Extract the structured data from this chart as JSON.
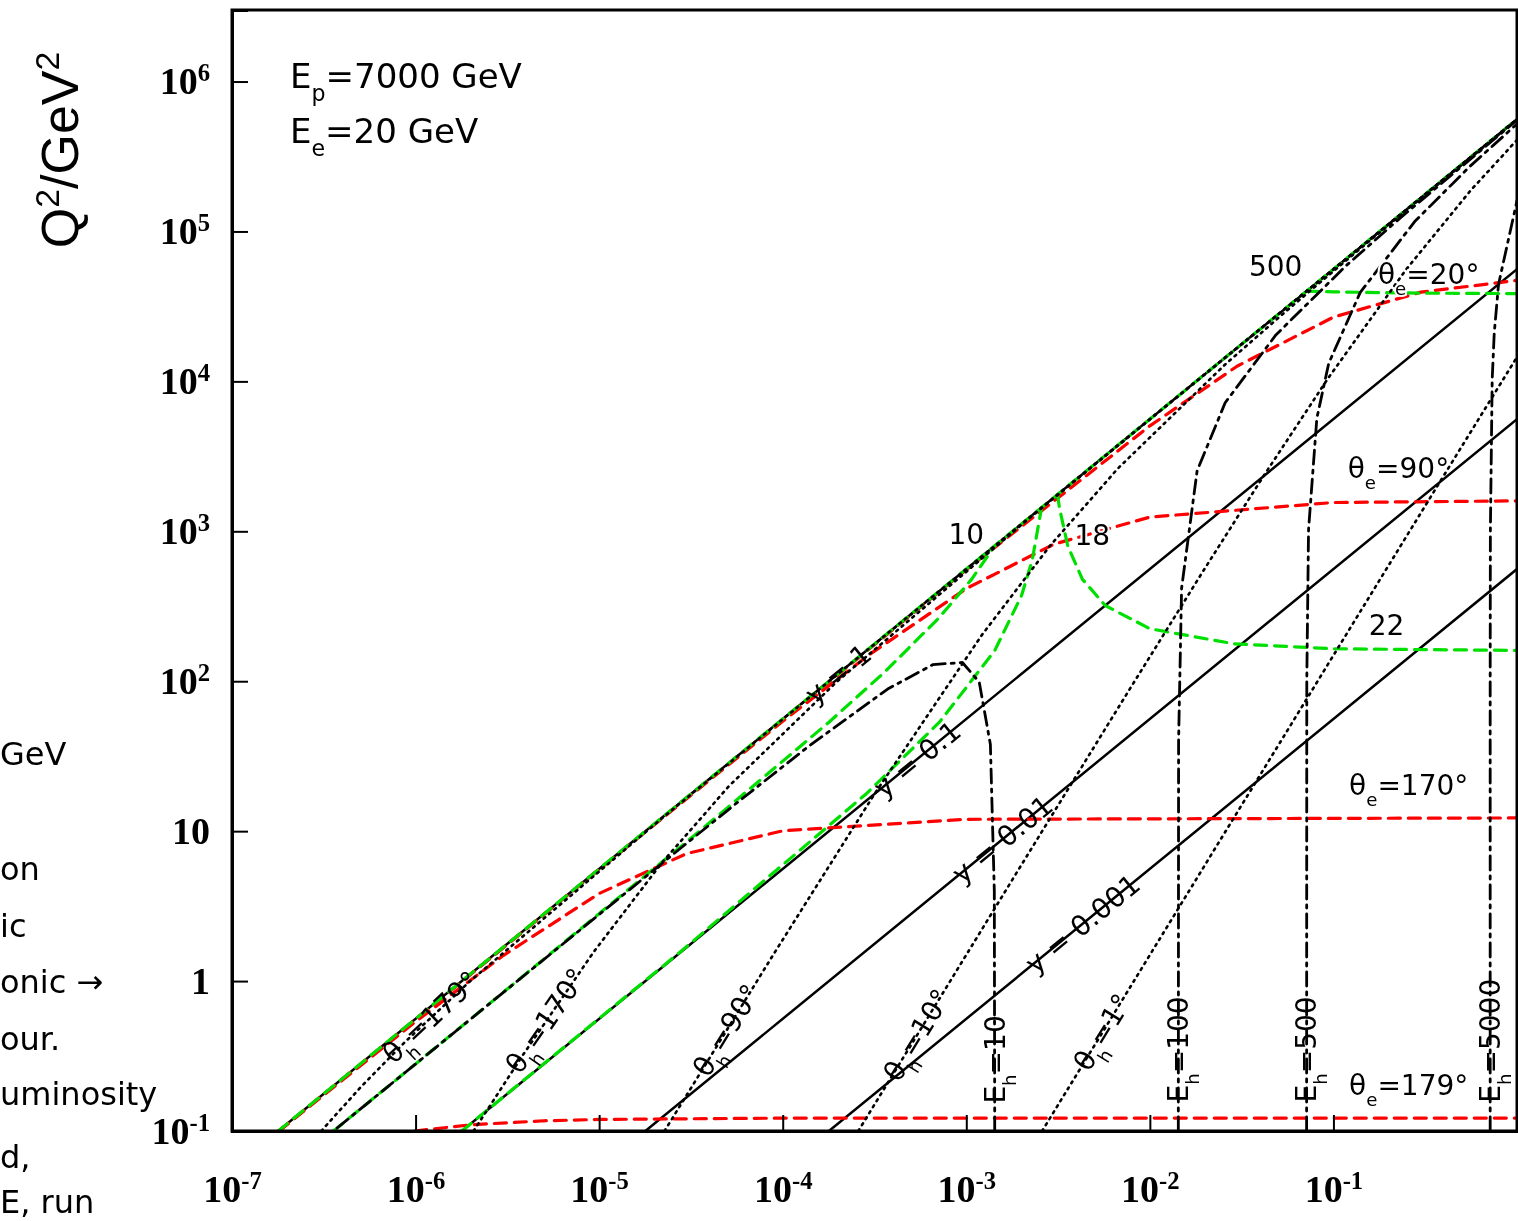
{
  "chart_data": {
    "type": "line",
    "ylabel": "Q$^{2}$/GeV$^{2}$",
    "log": "xy",
    "xlim": [
      1e-07,
      1
    ],
    "ylim": [
      0.1,
      3000000
    ],
    "xticks": [
      {
        "value": 1e-07,
        "label": "10$^{-7}$"
      },
      {
        "value": 1e-06,
        "label": "10$^{-6}$"
      },
      {
        "value": 1e-05,
        "label": "10$^{-5}$"
      },
      {
        "value": 0.0001,
        "label": "10$^{-4}$"
      },
      {
        "value": 0.001,
        "label": "10$^{-3}$"
      },
      {
        "value": 0.01,
        "label": "10$^{-2}$"
      },
      {
        "value": 0.1,
        "label": "10$^{-1}$"
      }
    ],
    "yticks": [
      {
        "value": 0.1,
        "label": "10$^{-1}$"
      },
      1,
      10,
      {
        "value": 100,
        "label": "10$^{2}$"
      },
      {
        "value": 1000,
        "label": "10$^{3}$"
      },
      {
        "value": 10000,
        "label": "10$^{4}$"
      },
      {
        "value": 100000,
        "label": "10$^{5}$"
      },
      {
        "value": 1000000,
        "label": "10$^{6}$"
      }
    ],
    "series": [
      {
        "color": "#000000",
        "line_style": "solid",
        "x": [
          1.786e-07,
          1
        ],
        "values": [
          0.1,
          560000
        ]
      },
      {
        "color": "#000000",
        "line_style": "solid",
        "x": [
          1.786e-06,
          1
        ],
        "values": [
          0.1,
          56000
        ]
      },
      {
        "color": "#000000",
        "line_style": "solid",
        "x": [
          1.786e-05,
          1
        ],
        "values": [
          0.1,
          5600
        ]
      },
      {
        "color": "#000000",
        "line_style": "solid",
        "x": [
          0.0001786,
          1
        ],
        "values": [
          0.1,
          560
        ]
      },
      {
        "color": "#ff0000",
        "line_style": "dashed",
        "x": [
          9.9e-07,
          2e-06,
          5e-06,
          1e-05,
          0.0001,
          1
        ],
        "values": [
          0.1,
          0.11,
          0.117,
          0.1194,
          0.1219,
          0.1219
        ]
      },
      {
        "color": "#ff0000",
        "line_style": "dashed",
        "x": [
          1.8e-07,
          1e-06,
          3e-06,
          1e-05,
          3e-05,
          0.0001,
          0.001,
          1
        ],
        "values": [
          0.1,
          0.536,
          1.48,
          3.84,
          7.09,
          10.05,
          12.0,
          12.25
        ]
      },
      {
        "color": "#ff0000",
        "line_style": "dashed",
        "x": [
          1.8e-07,
          1e-05,
          0.0001,
          0.0003,
          0.001,
          0.003,
          0.01,
          0.1,
          1
        ],
        "values": [
          0.1,
          5.58,
          54.1,
          152,
          415,
          820,
          1244,
          1556,
          1596
        ]
      },
      {
        "color": "#ff0000",
        "line_style": "dashed",
        "x": [
          1.8e-07,
          0.001,
          0.01,
          0.03,
          0.1,
          0.3,
          1
        ],
        "values": [
          0.1,
          554,
          5050,
          12670,
          26820,
          39390,
          47130
        ]
      },
      {
        "color": "#00e000",
        "line_style": "dashed",
        "x": [
          3.57e-07,
          3.57e-06,
          3.57e-05,
          0.0001786,
          0.000357,
          0.000714,
          0.001071,
          0.0014286
        ],
        "values": [
          0.1,
          1.0,
          10.13,
          53.3,
          114.3,
          266.7,
          480,
          800
        ]
      },
      {
        "color": "#00e000",
        "line_style": "dashed",
        "x": [
          1.786e-06,
          2.857e-05,
          0.0002857,
          0.000714,
          0.0014286,
          0.002,
          0.002286,
          0.002571
        ],
        "values": [
          0.1,
          1.616,
          17.78,
          53.3,
          160,
          373,
          640,
          1440
        ]
      },
      {
        "color": "#00e000",
        "line_style": "dashed",
        "x": [
          0.003143,
          0.003214,
          0.003571,
          0.004286,
          0.005714,
          0.01,
          0.02857,
          0.1,
          1
        ],
        "values": [
          1760,
          1440,
          800,
          480,
          320,
          224,
          177.8,
          164.7,
          160.5
        ]
      },
      {
        "color": "#00e000",
        "line_style": "dashed",
        "x": [
          0.07143,
          0.08,
          0.1,
          0.3,
          1
        ],
        "values": [
          40000,
          39820,
          39530,
          38770,
          38510
        ]
      },
      {
        "color": "#00e000",
        "line_style": "dashed",
        "x": [
          1.786e-07,
          1
        ],
        "values": [
          0.1,
          560000
        ]
      },
      {
        "color": "#000000",
        "line_style": "dotted",
        "x": [
          3.06e-07,
          5.08e-07,
          8.71e-07,
          1.96e-06,
          2.155e-05,
          0.0002177,
          0.002177,
          0.02177,
          0.2177,
          1
        ],
        "values": [
          0.1,
          0.199,
          0.39,
          0.987,
          11.95,
          121.8,
          1219,
          12190,
          121900,
          560000
        ]
      },
      {
        "color": "#000000",
        "line_style": "dotted",
        "x": [
          2.07e-06,
          3.86e-06,
          9.375e-06,
          2.19e-05,
          5.1e-05,
          0.000197,
          0.002166,
          0.02186,
          0.2188,
          1
        ],
        "values": [
          0.1,
          0.324,
          1.575,
          6.125,
          20.0,
          99.2,
          1201,
          12230,
          122500,
          560000
        ]
      },
      {
        "color": "#000000",
        "line_style": "dotted",
        "x": [
          2.27e-05,
          8.84e-05,
          0.000317,
          0.001224,
          0.002857,
          0.00667,
          0.02571,
          0.05429,
          0.14,
          0.2857,
          1
        ],
        "values": [
          0.1,
          1.485,
          17.78,
          205.7,
          800,
          2613,
          12960,
          28880,
          76830,
          158400,
          558400
        ]
      },
      {
        "color": "#000000",
        "line_style": "dotted",
        "x": [
          0.000258,
          0.000748,
          0.002252,
          0.00762,
          0.01964,
          0.04147,
          0.0933,
          0.2488,
          0.5598,
          1
        ],
        "values": [
          0.1,
          0.838,
          7.57,
          85.3,
          550,
          2322,
          10450,
          55730,
          188100,
          407800
        ]
      },
      {
        "color": "#000000",
        "line_style": "dotted",
        "x": [
          0.002588,
          0.0075,
          0.02252,
          0.0752,
          0.2265,
          0.4557,
          1
        ],
        "values": [
          0.1,
          0.84,
          7.57,
          84.2,
          761,
          3062,
          14540
        ]
      },
      {
        "color": "#000000",
        "line_style": "dashdot",
        "x": [
          0.0014286,
          0.0014214,
          0.001353,
          0.001176,
          0.000952,
          0.000659,
          0.000373,
          0.000136,
          5.6e-05,
          2.83e-05,
          2.83e-06,
          3.57e-07
        ],
        "values": [
          0.1,
          3.98,
          37.89,
          98.8,
          133.3,
          129.2,
          88.7,
          36.2,
          15.37,
          7.84,
          0.791,
          0.1
        ]
      },
      {
        "color": "#000000",
        "line_style": "dashdot",
        "x": [
          0.01429,
          0.01434,
          0.01489,
          0.01809,
          0.02571,
          0.04857,
          0.1171,
          0.2314,
          1
        ],
        "values": [
          0.1,
          40.16,
          416.8,
          2533,
          7200,
          20400,
          59040,
          123120,
          553600
        ]
      },
      {
        "color": "#000000",
        "line_style": "dashdot",
        "x": [
          0.07143,
          0.07159,
          0.07319,
          0.08123,
          0.09429,
          0.14,
          0.2771,
          0.5514,
          1
        ],
        "values": [
          0.1,
          100.2,
          1025,
          5686,
          13200,
          39200,
          116400,
          270200,
          521500
        ]
      },
      {
        "color": "#000000",
        "line_style": "dashdot",
        "x": [
          0.7143,
          0.7143,
          0.7161,
          0.7325,
          0.7517,
          0.7933,
          1
        ],
        "values": [
          0.1,
          100,
          1003,
          10255,
          21050,
          44430,
          160460
        ]
      }
    ],
    "annotations": [
      "E$_{p}$=7000 GeV",
      "E$_{e}$=20 GeV",
      "GeV",
      "on",
      "ic",
      "onic  →",
      "our.",
      "uminosity",
      "d,",
      "E, run",
      {
        "text": "y = 1",
        "x": 0.0002,
        "y": 112
      },
      {
        "text": "y = 0.1",
        "x": 0.00054,
        "y": 30.2
      },
      {
        "text": "y = 0.01",
        "x": 0.00157,
        "y": 8.8
      },
      {
        "text": "y = 0.001",
        "x": 0.0043,
        "y": 2.41
      },
      {
        "text": "θ$_{h}$=179°",
        "x": 1.21e-06,
        "y": 0.575
      },
      {
        "text": "θ$_{h}$=170°",
        "x": 5.13e-06,
        "y": 0.545
      },
      {
        "text": "θ$_{h}$=90°",
        "x": 4.94e-05,
        "y": 0.47
      },
      {
        "text": "θ$_{h}$=10°",
        "x": 0.00054,
        "y": 0.437
      },
      {
        "text": "θ$_{h}$=1°",
        "x": 0.00553,
        "y": 0.4565
      },
      {
        "text": "E$_{h}$=10",
        "x": 0.0014286,
        "y": 0.3
      },
      {
        "text": "E$_{h}$=100",
        "x": 0.01429,
        "y": 0.35
      },
      {
        "text": "E$_{h}$=500",
        "x": 0.07143,
        "y": 0.35
      },
      {
        "text": "E$_{h}$=5000",
        "x": 0.7143,
        "y": 0.4
      },
      {
        "text": "θ$_{e}$=179°",
        "x": 0.257,
        "y": 0.1219
      },
      {
        "text": "θ$_{e}$=170°",
        "x": 0.257,
        "y": 12.2
      },
      {
        "text": "θ$_{e}$=90°",
        "x": 0.226,
        "y": 1580
      },
      {
        "text": "θ$_{e}$=20°",
        "x": 0.2,
        "y": 35260
      },
      {
        "text": "10",
        "x": 0.0012857,
        "y": 654.5
      },
      {
        "text": "18",
        "x": 0.002286,
        "y": 640
      },
      {
        "text": "22",
        "x": 0.25,
        "y": 161.8
      },
      {
        "text": "500",
        "x": 0.08,
        "y": 39820
      }
    ]
  }
}
